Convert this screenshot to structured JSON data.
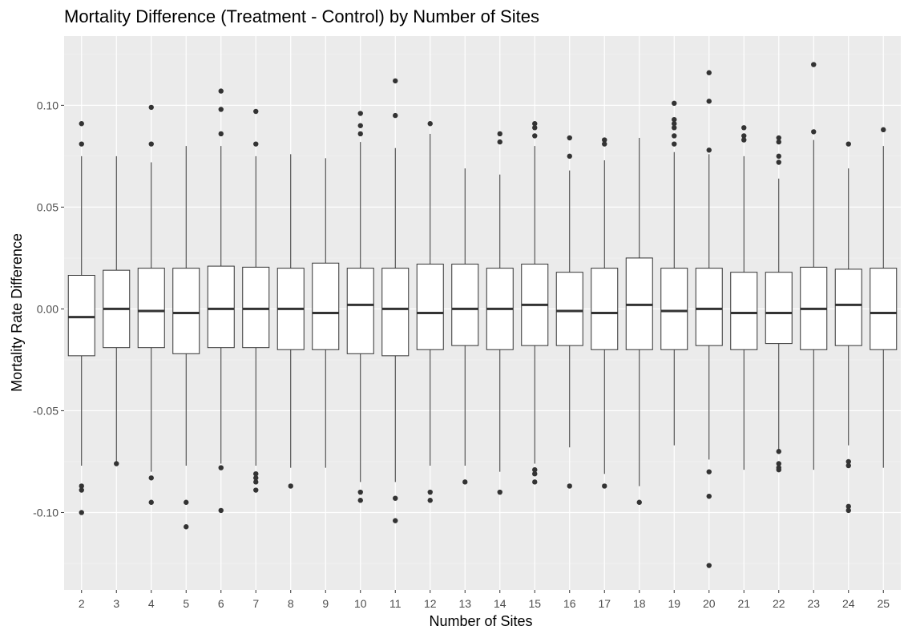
{
  "chart_data": {
    "type": "boxplot",
    "title": "Mortality Difference (Treatment - Control) by Number of Sites",
    "xlabel": "Number of Sites",
    "ylabel": "Mortality Rate Difference",
    "ylim": [
      -0.138,
      0.134
    ],
    "yticks": [
      -0.1,
      -0.05,
      0.0,
      0.05,
      0.1
    ],
    "ytick_labels": [
      "-0.10",
      "-0.05",
      "0.00",
      "0.05",
      "0.10"
    ],
    "grid": true,
    "legend": "none",
    "categories": [
      "2",
      "3",
      "4",
      "5",
      "6",
      "7",
      "8",
      "9",
      "10",
      "11",
      "12",
      "13",
      "14",
      "15",
      "16",
      "17",
      "18",
      "19",
      "20",
      "21",
      "22",
      "23",
      "24",
      "25"
    ],
    "boxes": [
      {
        "x": "2",
        "lower_whisker": -0.077,
        "q1": -0.023,
        "median": -0.004,
        "q3": 0.0165,
        "upper_whisker": 0.075,
        "outliers": [
          0.091,
          0.081,
          -0.087,
          -0.089,
          -0.1
        ]
      },
      {
        "x": "3",
        "lower_whisker": -0.076,
        "q1": -0.019,
        "median": 0.0,
        "q3": 0.019,
        "upper_whisker": 0.075,
        "outliers": [
          -0.076
        ]
      },
      {
        "x": "4",
        "lower_whisker": -0.08,
        "q1": -0.019,
        "median": -0.001,
        "q3": 0.02,
        "upper_whisker": 0.072,
        "outliers": [
          0.099,
          0.081,
          -0.083,
          -0.095
        ]
      },
      {
        "x": "5",
        "lower_whisker": -0.077,
        "q1": -0.022,
        "median": -0.002,
        "q3": 0.02,
        "upper_whisker": 0.08,
        "outliers": [
          -0.095,
          -0.107
        ]
      },
      {
        "x": "6",
        "lower_whisker": -0.076,
        "q1": -0.019,
        "median": 0.0,
        "q3": 0.021,
        "upper_whisker": 0.08,
        "outliers": [
          0.107,
          0.098,
          0.086,
          -0.078,
          -0.099
        ]
      },
      {
        "x": "7",
        "lower_whisker": -0.077,
        "q1": -0.019,
        "median": 0.0,
        "q3": 0.0205,
        "upper_whisker": 0.075,
        "outliers": [
          0.097,
          0.081,
          -0.081,
          -0.083,
          -0.085,
          -0.089
        ]
      },
      {
        "x": "8",
        "lower_whisker": -0.078,
        "q1": -0.02,
        "median": 0.0,
        "q3": 0.02,
        "upper_whisker": 0.076,
        "outliers": [
          -0.087
        ]
      },
      {
        "x": "9",
        "lower_whisker": -0.078,
        "q1": -0.02,
        "median": -0.002,
        "q3": 0.0225,
        "upper_whisker": 0.074,
        "outliers": []
      },
      {
        "x": "10",
        "lower_whisker": -0.085,
        "q1": -0.022,
        "median": 0.002,
        "q3": 0.02,
        "upper_whisker": 0.082,
        "outliers": [
          0.096,
          0.09,
          0.086,
          -0.09,
          -0.094
        ]
      },
      {
        "x": "11",
        "lower_whisker": -0.085,
        "q1": -0.023,
        "median": 0.0,
        "q3": 0.02,
        "upper_whisker": 0.079,
        "outliers": [
          0.112,
          0.095,
          -0.093,
          -0.104
        ]
      },
      {
        "x": "12",
        "lower_whisker": -0.077,
        "q1": -0.02,
        "median": -0.002,
        "q3": 0.022,
        "upper_whisker": 0.086,
        "outliers": [
          0.091,
          -0.09,
          -0.094
        ]
      },
      {
        "x": "13",
        "lower_whisker": -0.077,
        "q1": -0.018,
        "median": 0.0,
        "q3": 0.022,
        "upper_whisker": 0.069,
        "outliers": [
          -0.085
        ]
      },
      {
        "x": "14",
        "lower_whisker": -0.08,
        "q1": -0.02,
        "median": 0.0,
        "q3": 0.02,
        "upper_whisker": 0.066,
        "outliers": [
          0.086,
          0.082,
          -0.09
        ]
      },
      {
        "x": "15",
        "lower_whisker": -0.076,
        "q1": -0.018,
        "median": 0.002,
        "q3": 0.022,
        "upper_whisker": 0.08,
        "outliers": [
          0.091,
          0.089,
          0.085,
          -0.079,
          -0.081,
          -0.085
        ]
      },
      {
        "x": "16",
        "lower_whisker": -0.068,
        "q1": -0.018,
        "median": -0.001,
        "q3": 0.018,
        "upper_whisker": 0.068,
        "outliers": [
          0.084,
          0.075,
          -0.087
        ]
      },
      {
        "x": "17",
        "lower_whisker": -0.081,
        "q1": -0.02,
        "median": -0.002,
        "q3": 0.02,
        "upper_whisker": 0.073,
        "outliers": [
          0.083,
          0.081,
          -0.087
        ]
      },
      {
        "x": "18",
        "lower_whisker": -0.087,
        "q1": -0.02,
        "median": 0.002,
        "q3": 0.025,
        "upper_whisker": 0.084,
        "outliers": [
          -0.095
        ]
      },
      {
        "x": "19",
        "lower_whisker": -0.067,
        "q1": -0.02,
        "median": -0.001,
        "q3": 0.02,
        "upper_whisker": 0.077,
        "outliers": [
          0.101,
          0.093,
          0.091,
          0.089,
          0.085,
          0.081
        ]
      },
      {
        "x": "20",
        "lower_whisker": -0.074,
        "q1": -0.018,
        "median": 0.0,
        "q3": 0.02,
        "upper_whisker": 0.076,
        "outliers": [
          0.116,
          0.102,
          0.078,
          -0.08,
          -0.092,
          -0.126
        ]
      },
      {
        "x": "21",
        "lower_whisker": -0.079,
        "q1": -0.02,
        "median": -0.002,
        "q3": 0.018,
        "upper_whisker": 0.075,
        "outliers": [
          0.089,
          0.085,
          0.083
        ]
      },
      {
        "x": "22",
        "lower_whisker": -0.069,
        "q1": -0.017,
        "median": -0.002,
        "q3": 0.018,
        "upper_whisker": 0.064,
        "outliers": [
          0.084,
          0.082,
          0.075,
          0.072,
          -0.07,
          -0.076,
          -0.078,
          -0.079
        ]
      },
      {
        "x": "23",
        "lower_whisker": -0.079,
        "q1": -0.02,
        "median": 0.0,
        "q3": 0.0205,
        "upper_whisker": 0.083,
        "outliers": [
          0.12,
          0.087
        ]
      },
      {
        "x": "24",
        "lower_whisker": -0.067,
        "q1": -0.018,
        "median": 0.002,
        "q3": 0.0195,
        "upper_whisker": 0.069,
        "outliers": [
          0.081,
          -0.075,
          -0.077,
          -0.097,
          -0.099
        ]
      },
      {
        "x": "25",
        "lower_whisker": -0.078,
        "q1": -0.02,
        "median": -0.002,
        "q3": 0.02,
        "upper_whisker": 0.08,
        "outliers": [
          0.088
        ]
      }
    ],
    "colors": {
      "panel_background": "#EBEBEB",
      "grid_major": "#FFFFFF",
      "grid_minor": "#F5F5F5",
      "box_fill": "#FFFFFF",
      "box_line": "#333333",
      "outlier": "#333333",
      "tick_label": "#4D4D4D",
      "text": "#000000"
    }
  }
}
